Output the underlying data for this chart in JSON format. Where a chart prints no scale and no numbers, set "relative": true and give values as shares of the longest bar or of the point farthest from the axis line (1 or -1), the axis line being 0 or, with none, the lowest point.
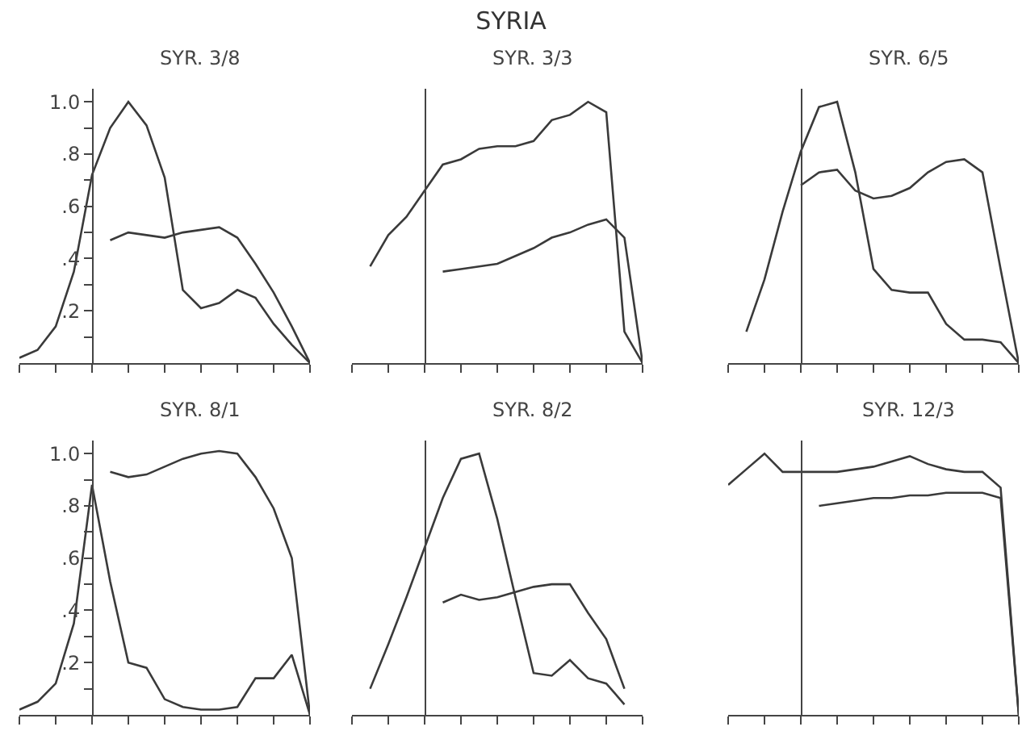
{
  "chart_data": [
    {
      "type": "other",
      "title": "SYRIA"
    },
    {
      "type": "line",
      "title": "SYR. 3/8",
      "categories": [
        null,
        null,
        null,
        null,
        null,
        null,
        null,
        null,
        null,
        null,
        null,
        null,
        null,
        null,
        null,
        null,
        null
      ],
      "series": [
        {
          "color": "#3a3a3a",
          "values": [
            0.02,
            0.05,
            0.14,
            0.35,
            0.72,
            0.9,
            1.0,
            0.91,
            0.71,
            0.28,
            0.21,
            0.23,
            0.28,
            0.25,
            0.15,
            0.07,
            0
          ]
        },
        {
          "color": "#3a3a3a",
          "values": [
            null,
            null,
            null,
            null,
            null,
            0.47,
            0.5,
            0.49,
            0.48,
            0.5,
            0.51,
            0.52,
            0.48,
            0.38,
            0.27,
            0.14,
            0
          ]
        }
      ],
      "ylim": [
        0,
        1.05
      ],
      "yticks": [
        {
          "value": 0.2,
          "label": ".2"
        },
        {
          "value": 0.4,
          "label": ".4"
        },
        {
          "value": 0.6,
          "label": ".6"
        },
        {
          "value": 0.8,
          "label": ".8"
        },
        {
          "value": 1.0,
          "label": "1.0"
        }
      ],
      "tick_labels": "y",
      "grid": false,
      "marker": "none",
      "line_style": "solid"
    },
    {
      "type": "line",
      "title": "SYR. 3/3",
      "relative": true,
      "categories": [
        null,
        null,
        null,
        null,
        null,
        null,
        null,
        null,
        null,
        null,
        null,
        null,
        null,
        null,
        null,
        null,
        null
      ],
      "series": [
        {
          "color": "#3a3a3a",
          "values": [
            null,
            0.37,
            0.49,
            0.56,
            0.66,
            0.76,
            0.78,
            0.82,
            0.83,
            0.83,
            0.85,
            0.93,
            0.95,
            1.0,
            0.96,
            0.12,
            0
          ]
        },
        {
          "color": "#3a3a3a",
          "values": [
            null,
            null,
            null,
            null,
            null,
            0.35,
            0.36,
            0.37,
            0.38,
            0.41,
            0.44,
            0.48,
            0.5,
            0.53,
            0.55,
            0.48,
            0
          ]
        }
      ],
      "tick_labels": false,
      "grid": false,
      "marker": "none",
      "line_style": "solid"
    },
    {
      "type": "line",
      "title": "SYR. 6/5",
      "relative": true,
      "categories": [
        null,
        null,
        null,
        null,
        null,
        null,
        null,
        null,
        null,
        null,
        null,
        null,
        null,
        null,
        null,
        null,
        null
      ],
      "series": [
        {
          "color": "#3a3a3a",
          "values": [
            null,
            0.12,
            0.32,
            0.58,
            0.81,
            0.98,
            1.0,
            0.73,
            0.36,
            0.28,
            0.27,
            0.27,
            0.15,
            0.09,
            0.09,
            0.08,
            0
          ]
        },
        {
          "color": "#3a3a3a",
          "values": [
            null,
            null,
            null,
            null,
            0.68,
            0.73,
            0.74,
            0.66,
            0.63,
            0.64,
            0.67,
            0.73,
            0.77,
            0.78,
            0.73,
            0.36,
            0
          ]
        }
      ],
      "tick_labels": false,
      "grid": false,
      "marker": "none",
      "line_style": "solid"
    },
    {
      "type": "line",
      "title": "SYR. 8/1",
      "categories": [
        null,
        null,
        null,
        null,
        null,
        null,
        null,
        null,
        null,
        null,
        null,
        null,
        null,
        null,
        null,
        null,
        null
      ],
      "series": [
        {
          "color": "#3a3a3a",
          "values": [
            0.02,
            0.05,
            0.12,
            0.35,
            0.88,
            0.51,
            0.2,
            0.18,
            0.06,
            0.03,
            0.02,
            0.02,
            0.03,
            0.14,
            0.14,
            0.23,
            0
          ]
        },
        {
          "color": "#3a3a3a",
          "values": [
            null,
            null,
            null,
            null,
            null,
            0.93,
            0.91,
            0.92,
            0.95,
            0.98,
            1.0,
            1.01,
            1.0,
            0.91,
            0.79,
            0.6,
            0
          ]
        }
      ],
      "ylim": [
        0,
        1.05
      ],
      "yticks": [
        {
          "value": 0.2,
          "label": ".2"
        },
        {
          "value": 0.4,
          "label": ".4"
        },
        {
          "value": 0.6,
          "label": ".6"
        },
        {
          "value": 0.8,
          "label": ".8"
        },
        {
          "value": 1.0,
          "label": "1.0"
        }
      ],
      "tick_labels": "y",
      "grid": false,
      "marker": "none",
      "line_style": "solid"
    },
    {
      "type": "line",
      "title": "SYR. 8/2",
      "relative": true,
      "categories": [
        null,
        null,
        null,
        null,
        null,
        null,
        null,
        null,
        null,
        null,
        null,
        null,
        null,
        null,
        null,
        null,
        null
      ],
      "series": [
        {
          "color": "#3a3a3a",
          "values": [
            null,
            0.1,
            0.27,
            0.45,
            0.64,
            0.83,
            0.98,
            1.0,
            0.75,
            0.45,
            0.16,
            0.15,
            0.21,
            0.14,
            0.12,
            0.04,
            null
          ]
        },
        {
          "color": "#3a3a3a",
          "values": [
            null,
            null,
            null,
            null,
            null,
            0.43,
            0.46,
            0.44,
            0.45,
            0.47,
            0.49,
            0.5,
            0.5,
            0.39,
            0.29,
            0.1,
            null
          ]
        }
      ],
      "tick_labels": false,
      "grid": false,
      "marker": "none",
      "line_style": "solid"
    },
    {
      "type": "line",
      "title": "SYR. 12/3",
      "relative": true,
      "categories": [
        null,
        null,
        null,
        null,
        null,
        null,
        null,
        null,
        null,
        null,
        null,
        null,
        null,
        null,
        null,
        null,
        null
      ],
      "series": [
        {
          "color": "#3a3a3a",
          "values": [
            0.88,
            0.94,
            1.0,
            0.93,
            0.93,
            0.93,
            0.93,
            0.94,
            0.95,
            0.97,
            0.99,
            0.96,
            0.94,
            0.93,
            0.93,
            0.87,
            0
          ]
        },
        {
          "color": "#3a3a3a",
          "values": [
            null,
            null,
            null,
            null,
            null,
            0.8,
            0.81,
            0.82,
            0.83,
            0.83,
            0.84,
            0.84,
            0.85,
            0.85,
            0.85,
            0.83,
            0
          ]
        }
      ],
      "tick_labels": false,
      "grid": false,
      "marker": "none",
      "line_style": "solid"
    }
  ]
}
